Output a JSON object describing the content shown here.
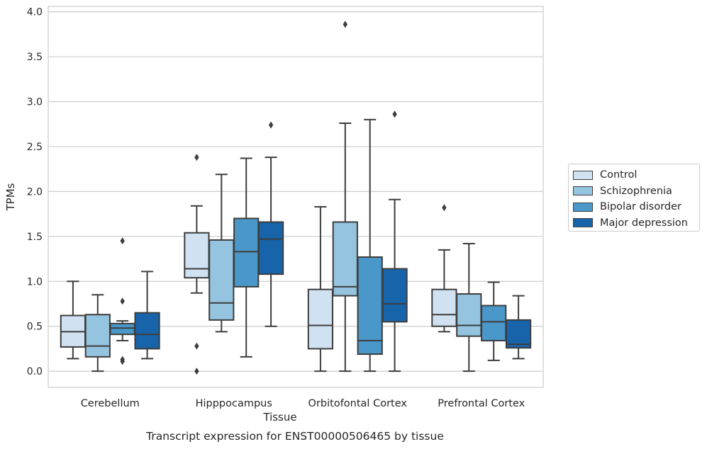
{
  "chart_data": {
    "type": "box",
    "title": "Transcript expression for ENST00000506465 by tissue",
    "xlabel": "Tissue",
    "ylabel": "TPMs",
    "ylim": [
      -0.18,
      4.06
    ],
    "yticks": [
      0.0,
      0.5,
      1.0,
      1.5,
      2.0,
      2.5,
      3.0,
      3.5,
      4.0
    ],
    "ytick_labels": [
      "0.0",
      "0.5",
      "1.0",
      "1.5",
      "2.0",
      "2.5",
      "3.0",
      "3.5",
      "4.0"
    ],
    "grid": "horizontal",
    "legend_position": "right, outside",
    "categories": [
      "Cerebellum",
      "Hipppocampus",
      "Orbitofontal Cortex",
      "Prefrontal Cortex"
    ],
    "series": [
      {
        "name": "Control",
        "color": "#d0e1f2",
        "boxes": [
          {
            "whisker_low": 0.14,
            "q1": 0.27,
            "median": 0.44,
            "q3": 0.62,
            "whisker_high": 1.0,
            "outliers": []
          },
          {
            "whisker_low": 0.87,
            "q1": 1.04,
            "median": 1.14,
            "q3": 1.54,
            "whisker_high": 1.84,
            "outliers": [
              2.38,
              0.28,
              0.0
            ]
          },
          {
            "whisker_low": 0.0,
            "q1": 0.25,
            "median": 0.51,
            "q3": 0.91,
            "whisker_high": 1.83,
            "outliers": []
          },
          {
            "whisker_low": 0.44,
            "q1": 0.5,
            "median": 0.63,
            "q3": 0.91,
            "whisker_high": 1.35,
            "outliers": [
              1.82
            ]
          }
        ]
      },
      {
        "name": "Schizophrenia",
        "color": "#94c4df",
        "boxes": [
          {
            "whisker_low": 0.0,
            "q1": 0.16,
            "median": 0.28,
            "q3": 0.63,
            "whisker_high": 0.85,
            "outliers": []
          },
          {
            "whisker_low": 0.44,
            "q1": 0.57,
            "median": 0.76,
            "q3": 1.46,
            "whisker_high": 2.19,
            "outliers": []
          },
          {
            "whisker_low": 0.0,
            "q1": 0.84,
            "median": 0.94,
            "q3": 1.66,
            "whisker_high": 2.76,
            "outliers": [
              3.86
            ]
          },
          {
            "whisker_low": 0.0,
            "q1": 0.39,
            "median": 0.51,
            "q3": 0.86,
            "whisker_high": 1.42,
            "outliers": []
          }
        ]
      },
      {
        "name": "Bipolar disorder",
        "color": "#4a98c9",
        "boxes": [
          {
            "whisker_low": 0.34,
            "q1": 0.41,
            "median": 0.48,
            "q3": 0.53,
            "whisker_high": 0.56,
            "outliers": [
              1.45,
              0.78,
              0.13,
              0.11
            ]
          },
          {
            "whisker_low": 0.16,
            "q1": 0.94,
            "median": 1.33,
            "q3": 1.7,
            "whisker_high": 2.37,
            "outliers": []
          },
          {
            "whisker_low": 0.0,
            "q1": 0.19,
            "median": 0.34,
            "q3": 1.27,
            "whisker_high": 2.8,
            "outliers": []
          },
          {
            "whisker_low": 0.12,
            "q1": 0.34,
            "median": 0.55,
            "q3": 0.73,
            "whisker_high": 0.99,
            "outliers": []
          }
        ]
      },
      {
        "name": "Major depression",
        "color": "#1764ab",
        "boxes": [
          {
            "whisker_low": 0.14,
            "q1": 0.25,
            "median": 0.41,
            "q3": 0.65,
            "whisker_high": 1.11,
            "outliers": []
          },
          {
            "whisker_low": 0.5,
            "q1": 1.08,
            "median": 1.47,
            "q3": 1.66,
            "whisker_high": 2.38,
            "outliers": [
              2.74
            ]
          },
          {
            "whisker_low": 0.0,
            "q1": 0.55,
            "median": 0.75,
            "q3": 1.14,
            "whisker_high": 1.91,
            "outliers": [
              2.86
            ]
          },
          {
            "whisker_low": 0.14,
            "q1": 0.26,
            "median": 0.3,
            "q3": 0.57,
            "whisker_high": 0.84,
            "outliers": []
          }
        ]
      }
    ]
  },
  "colors": {
    "line": "#3d3d3d",
    "grid": "#cccccc",
    "spine": "#cccccc"
  }
}
